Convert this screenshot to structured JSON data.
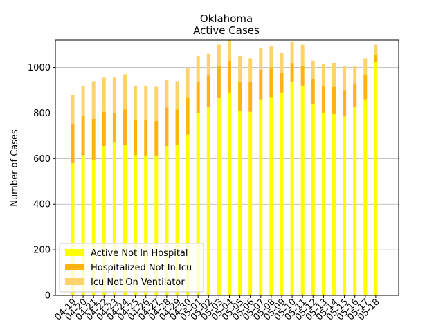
{
  "chart_data": {
    "type": "bar",
    "stacked": true,
    "title": "Oklahoma",
    "subtitle": "Active Cases",
    "xlabel": "",
    "ylabel": "Number of Cases",
    "ylim": [
      0,
      1120
    ],
    "yticks": [
      0,
      200,
      400,
      600,
      800,
      1000
    ],
    "grid": "y",
    "legend_position": "lower-left",
    "categories": [
      "04-19",
      "04-20",
      "04-21",
      "04-22",
      "04-23",
      "04-24",
      "04-25",
      "04-26",
      "04-27",
      "04-28",
      "04-29",
      "04-30",
      "05-01",
      "05-02",
      "05-03",
      "05-04",
      "05-05",
      "05-06",
      "05-07",
      "05-08",
      "05-09",
      "05-10",
      "05-11",
      "05-12",
      "05-13",
      "05-14",
      "05-15",
      "05-16",
      "05-17",
      "05-18"
    ],
    "series": [
      {
        "name": "Active Not In Hospital",
        "color": "#ffff00",
        "values": [
          580,
          615,
          595,
          655,
          670,
          660,
          615,
          610,
          610,
          655,
          660,
          705,
          800,
          825,
          865,
          890,
          810,
          805,
          860,
          870,
          890,
          935,
          920,
          840,
          800,
          795,
          785,
          825,
          860,
          1025
        ]
      },
      {
        "name": "Hospitalized Not In Icu",
        "color": "#ffb310",
        "values": [
          170,
          175,
          180,
          150,
          130,
          155,
          155,
          160,
          155,
          170,
          155,
          160,
          135,
          140,
          140,
          140,
          125,
          130,
          130,
          130,
          85,
          85,
          85,
          110,
          120,
          120,
          115,
          105,
          105,
          30
        ]
      },
      {
        "name": "Icu Not On Ventilator",
        "color": "#ffd36b",
        "values": [
          130,
          130,
          165,
          150,
          155,
          155,
          150,
          150,
          150,
          120,
          125,
          130,
          115,
          95,
          95,
          90,
          115,
          105,
          95,
          95,
          90,
          95,
          95,
          80,
          95,
          105,
          105,
          75,
          75,
          45
        ]
      }
    ]
  }
}
